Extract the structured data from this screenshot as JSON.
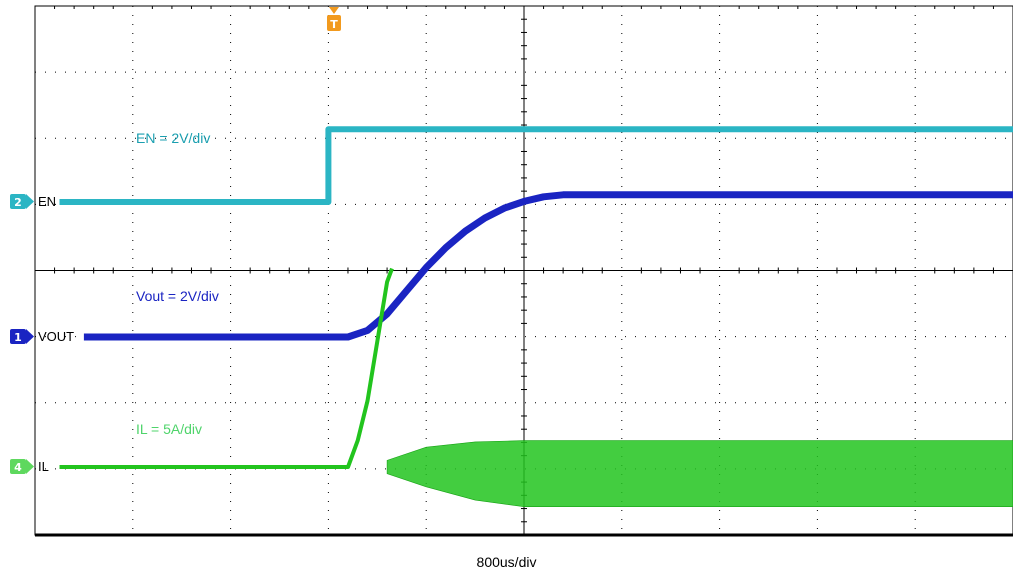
{
  "chart_data": {
    "type": "line",
    "title": "",
    "xlabel": "800us/div",
    "ylabel": "",
    "x_unit": "div",
    "xlim": [
      0,
      10
    ],
    "ylim": [
      0,
      8
    ],
    "grid": true,
    "trigger_marker": "T",
    "series": [
      {
        "name": "EN",
        "channel": "2",
        "color": "#2bb5c4",
        "scale_label": "EN = 2V/div",
        "x": [
          0.25,
          3.0,
          3.0,
          10.0
        ],
        "y": [
          0.0,
          0.0,
          1.1,
          1.1
        ]
      },
      {
        "name": "VOUT",
        "channel": "1",
        "color": "#1a24c2",
        "scale_label": "Vout = 2V/div",
        "x": [
          0.5,
          3.2,
          3.4,
          3.6,
          3.8,
          4.0,
          4.2,
          4.4,
          4.6,
          4.8,
          5.0,
          5.2,
          5.4,
          10.0
        ],
        "y": [
          0.0,
          0.0,
          0.1,
          0.35,
          0.7,
          1.05,
          1.35,
          1.6,
          1.8,
          1.95,
          2.05,
          2.12,
          2.15,
          2.15
        ]
      },
      {
        "name": "IL",
        "channel": "4",
        "color": "#22c41e",
        "scale_label": "IL = 5A/div",
        "x": [
          0.25,
          3.2,
          3.3,
          3.4,
          3.5,
          3.6,
          3.65
        ],
        "y": [
          0.0,
          0.0,
          0.4,
          1.0,
          1.9,
          2.8,
          3.0
        ],
        "ripple_band": {
          "x": [
            3.6,
            4.0,
            4.5,
            5.0,
            6.0,
            10.0
          ],
          "upper": [
            0.1,
            0.3,
            0.38,
            0.4,
            0.4,
            0.4
          ],
          "lower": [
            -0.1,
            -0.3,
            -0.5,
            -0.6,
            -0.6,
            -0.6
          ]
        }
      }
    ]
  },
  "markers": {
    "en": {
      "number": "2",
      "label": "EN"
    },
    "vout": {
      "number": "1",
      "label": "VOUT"
    },
    "il": {
      "number": "4",
      "label": "IL"
    }
  }
}
